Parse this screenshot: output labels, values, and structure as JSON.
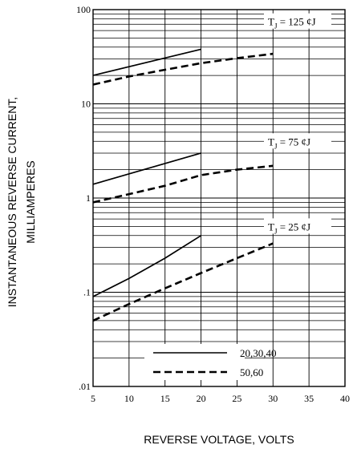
{
  "chart_data": {
    "type": "line",
    "xlabel": "REVERSE VOLTAGE, VOLTS",
    "ylabel": [
      "INSTANTANEOUS REVERSE CURRENT,",
      "MILLIAMPERES"
    ],
    "xlim": [
      5,
      40
    ],
    "ylim": [
      0.01,
      100
    ],
    "y_scale": "log",
    "grid": true,
    "x_ticks": [
      "5",
      "10",
      "15",
      "20",
      "25",
      "30",
      "35",
      "40"
    ],
    "y_ticks": [
      {
        "value": 100,
        "label": "100"
      },
      {
        "value": 10,
        "label": "10"
      },
      {
        "value": 1,
        "label": "1"
      },
      {
        "value": 0.1,
        "label": ".1"
      },
      {
        "value": 0.01,
        "label": ".01"
      }
    ],
    "series": [
      {
        "group": "T_J = 125 ¢J",
        "legend": "20,30,40",
        "style": "solid",
        "x": [
          5,
          20
        ],
        "y": [
          20,
          38
        ]
      },
      {
        "group": "T_J = 125 ¢J",
        "legend": "50,60",
        "style": "dashed",
        "x": [
          5,
          10,
          15,
          20,
          25,
          30
        ],
        "y": [
          16,
          19.5,
          23,
          27,
          30.5,
          34
        ]
      },
      {
        "group": "T_J = 75 ¢J",
        "legend": "20,30,40",
        "style": "solid",
        "x": [
          5,
          20
        ],
        "y": [
          1.4,
          3.0
        ]
      },
      {
        "group": "T_J = 75 ¢J",
        "legend": "50,60",
        "style": "dashed",
        "x": [
          5,
          10,
          15,
          20,
          25,
          30
        ],
        "y": [
          0.9,
          1.1,
          1.35,
          1.75,
          2.0,
          2.2
        ]
      },
      {
        "group": "T_J = 25 ¢J",
        "legend": "20,30,40",
        "style": "solid",
        "x": [
          5,
          10,
          15,
          20
        ],
        "y": [
          0.09,
          0.14,
          0.23,
          0.4
        ]
      },
      {
        "group": "T_J = 25 ¢J",
        "legend": "50,60",
        "style": "dashed",
        "x": [
          5,
          10,
          15,
          20,
          25,
          30
        ],
        "y": [
          0.05,
          0.075,
          0.11,
          0.16,
          0.23,
          0.33
        ]
      }
    ],
    "callouts": [
      {
        "prefix": "T",
        "sub": "J",
        "text": " = 125 ¢J",
        "y": 75
      },
      {
        "prefix": "T",
        "sub": "J",
        "text": " = 75 ¢J",
        "y": 4.0
      },
      {
        "prefix": "T",
        "sub": "J",
        "text": " = 25 ¢J",
        "y": 0.5
      }
    ],
    "legend": {
      "placement": "bottom",
      "entries": [
        {
          "style": "solid",
          "label": "20,30,40"
        },
        {
          "style": "dashed",
          "label": "50,60"
        }
      ]
    }
  }
}
